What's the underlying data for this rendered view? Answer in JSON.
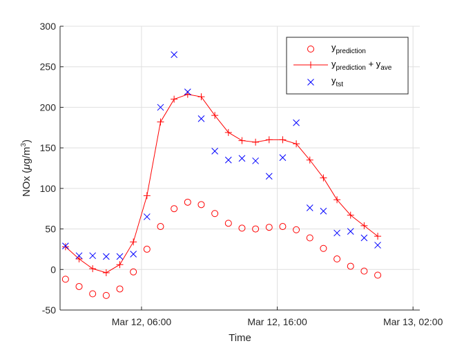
{
  "chart_data": {
    "type": "line",
    "xlabel": "Time",
    "ylabel": "NOx (μg/m³)",
    "ylabel_parts": {
      "main": "NOx (",
      "mu": "μ",
      "unit": "g/m",
      "sup": "3",
      "close": ")"
    },
    "ylim": [
      -50,
      300
    ],
    "yticks": [
      -50,
      0,
      50,
      100,
      150,
      200,
      250,
      300
    ],
    "xlim_hours": [
      0,
      26.5
    ],
    "xticks": [
      {
        "hour": 6,
        "label": "Mar 12, 06:00"
      },
      {
        "hour": 16,
        "label": "Mar 12, 16:00"
      },
      {
        "hour": 26,
        "label": "Mar 13, 02:00"
      }
    ],
    "grid": true,
    "legend_position": "top-right",
    "x_hours": [
      0.4,
      1.4,
      2.4,
      3.4,
      4.4,
      5.4,
      6.4,
      7.4,
      8.4,
      9.4,
      10.4,
      11.4,
      12.4,
      13.4,
      14.4,
      15.4,
      16.4,
      17.4,
      18.4,
      19.4,
      20.4,
      21.4,
      22.4,
      23.4
    ],
    "series": [
      {
        "legend_main": "y",
        "legend_sub": "prediction",
        "marker": "circle",
        "color": "#ff0000",
        "values": [
          -12,
          -21,
          -30,
          -32,
          -24,
          -3,
          25,
          53,
          75,
          83,
          80,
          69,
          57,
          51,
          50,
          52,
          53,
          49,
          39,
          26,
          13,
          4,
          -2,
          -7
        ]
      },
      {
        "legend_main": "y",
        "legend_sub": "prediction",
        "legend_extra": " + y",
        "legend_sub2": "ave",
        "marker": "plus",
        "line": true,
        "color": "#ff0000",
        "values": [
          28,
          13,
          1,
          -4,
          6,
          34,
          91,
          182,
          210,
          216,
          213,
          190,
          169,
          159,
          157,
          160,
          160,
          155,
          135,
          113,
          86,
          67,
          54,
          41
        ]
      },
      {
        "legend_main": "y",
        "legend_sub": "tst",
        "marker": "x",
        "color": "#0000ff",
        "values": [
          29,
          17,
          17,
          16,
          16,
          19,
          65,
          200,
          265,
          219,
          186,
          146,
          135,
          137,
          134,
          115,
          138,
          181,
          76,
          72,
          45,
          47,
          39,
          30
        ]
      }
    ]
  }
}
